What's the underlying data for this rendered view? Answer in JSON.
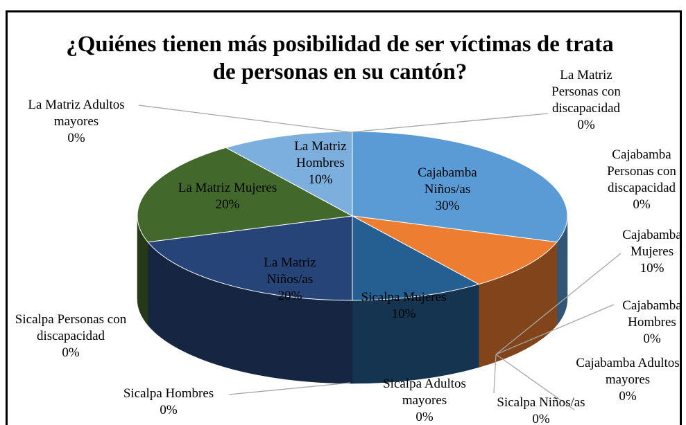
{
  "chart_data": {
    "type": "pie3d",
    "title": "¿Quiénes tienen más posibilidad de ser víctimas de trata de personas en su cantón?",
    "categories": [
      "Cajabamba Niños/as",
      "Cajabamba Personas con discapacidad",
      "Cajabamba Mujeres",
      "Cajabamba Hombres",
      "Cajabamba Adultos mayores",
      "Sicalpa Niños/as",
      "Sicalpa Adultos mayores",
      "Sicalpa Mujeres",
      "Sicalpa Hombres",
      "Sicalpa Personas con discapacidad",
      "La Matriz Niños/as",
      "La Matriz Mujeres",
      "La Matriz Hombres",
      "La Matriz Adultos mayores",
      "La Matriz Personas con discapacidad"
    ],
    "values": [
      30,
      0,
      10,
      0,
      0,
      0,
      0,
      10,
      0,
      0,
      20,
      20,
      10,
      0,
      0
    ],
    "value_labels": [
      "30%",
      "0%",
      "10%",
      "0%",
      "0%",
      "0%",
      "0%",
      "10%",
      "0%",
      "0%",
      "20%",
      "20%",
      "10%",
      "0%",
      "0%"
    ],
    "colors": [
      "#5b9bd5",
      "#a5a5a5",
      "#ed7d31",
      "#ffc000",
      "#4472c4",
      "#70ad47",
      "#9e480e",
      "#255e91",
      "#997300",
      "#636363",
      "#264478",
      "#43682b",
      "#7cafdd",
      "#f1975a",
      "#b7b7b7"
    ]
  }
}
